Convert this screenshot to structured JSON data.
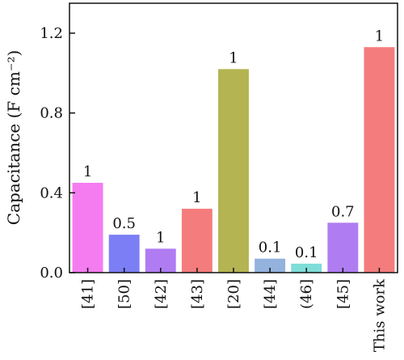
{
  "chart_data": {
    "type": "bar",
    "title": "",
    "xlabel": "",
    "ylabel": "Capacitance (F cm⁻²)",
    "ylim": [
      0,
      1.35
    ],
    "yticks": [
      0.0,
      0.4,
      0.8,
      1.2
    ],
    "ytick_labels": [
      "0.0",
      "0.4",
      "0.8",
      "1.2"
    ],
    "grid": false,
    "legend": "none",
    "categories": [
      "[41]",
      "[50]",
      "[42]",
      "[43]",
      "[20]",
      "[44]",
      "(46]",
      "[45]",
      "This work"
    ],
    "values": [
      0.45,
      0.19,
      0.12,
      0.32,
      1.02,
      0.07,
      0.045,
      0.25,
      1.13
    ],
    "bar_labels": [
      "1",
      "0.5",
      "1",
      "1",
      "1",
      "0.1",
      "0.1",
      "0.7",
      "1"
    ],
    "colors": [
      "#f57cf0",
      "#7b7ef5",
      "#b07cf2",
      "#f57c7c",
      "#b4b452",
      "#93b2dd",
      "#7fddd8",
      "#b07cf2",
      "#f57c7c"
    ]
  }
}
